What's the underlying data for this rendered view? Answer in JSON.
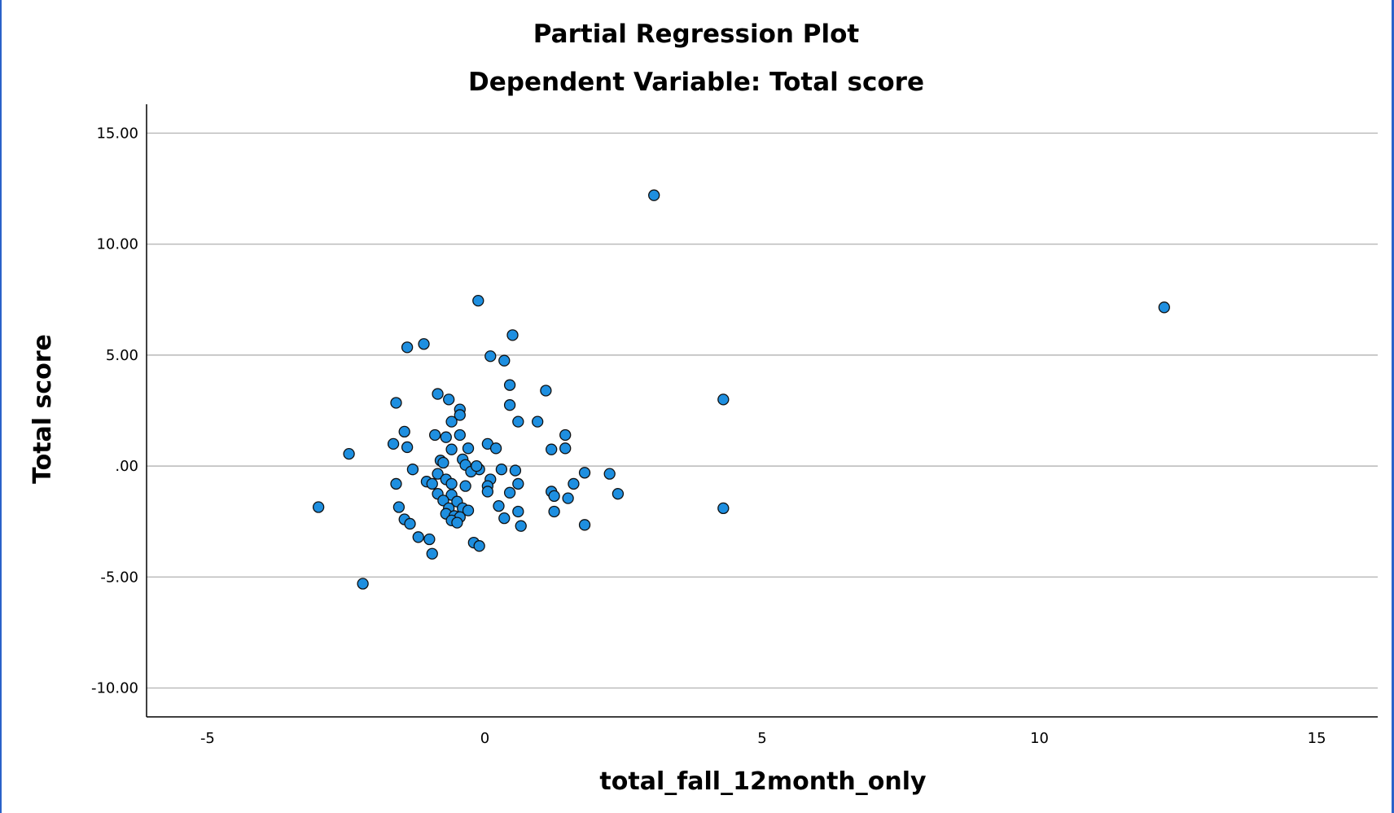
{
  "chart_data": {
    "type": "scatter",
    "title": "Partial Regression Plot",
    "subtitle": "Dependent Variable: Total score",
    "xlabel": "total_fall_12month_only",
    "ylabel": "Total score",
    "xlim": [
      -6.1,
      16.1
    ],
    "ylim": [
      -11.3,
      16.3
    ],
    "x_ticks": [
      -5,
      0,
      5,
      10,
      15
    ],
    "x_tick_labels": [
      "-5",
      "0",
      "5",
      "10",
      "15"
    ],
    "y_ticks": [
      15,
      10,
      5,
      0,
      -5,
      -10
    ],
    "y_tick_labels": [
      "15.00",
      "10.00",
      "5.00",
      ".00",
      "-5.00",
      "-10.00"
    ],
    "grid": "horizontal",
    "marker_color": "#1e8fe0",
    "marker_edge": "#111111",
    "points": [
      [
        3.05,
        12.2
      ],
      [
        12.25,
        7.15
      ],
      [
        -0.12,
        7.45
      ],
      [
        0.5,
        5.9
      ],
      [
        -1.1,
        5.5
      ],
      [
        -1.4,
        5.35
      ],
      [
        0.1,
        4.95
      ],
      [
        0.35,
        4.75
      ],
      [
        4.3,
        3.0
      ],
      [
        0.45,
        3.65
      ],
      [
        1.1,
        3.4
      ],
      [
        -0.85,
        3.25
      ],
      [
        -0.65,
        3.0
      ],
      [
        -1.6,
        2.85
      ],
      [
        0.45,
        2.75
      ],
      [
        -0.45,
        2.55
      ],
      [
        -0.45,
        2.3
      ],
      [
        -0.6,
        2.0
      ],
      [
        0.6,
        2.0
      ],
      [
        0.95,
        2.0
      ],
      [
        -1.45,
        1.55
      ],
      [
        -0.9,
        1.4
      ],
      [
        -0.45,
        1.4
      ],
      [
        -0.7,
        1.3
      ],
      [
        1.45,
        1.4
      ],
      [
        -1.65,
        1.0
      ],
      [
        -1.4,
        0.85
      ],
      [
        0.05,
        1.0
      ],
      [
        0.2,
        0.8
      ],
      [
        -0.3,
        0.8
      ],
      [
        -0.6,
        0.75
      ],
      [
        1.2,
        0.75
      ],
      [
        1.45,
        0.8
      ],
      [
        -2.45,
        0.55
      ],
      [
        -0.8,
        0.25
      ],
      [
        -0.4,
        0.3
      ],
      [
        -0.75,
        0.15
      ],
      [
        -0.35,
        0.05
      ],
      [
        -0.1,
        -0.15
      ],
      [
        0.3,
        -0.15
      ],
      [
        0.55,
        -0.2
      ],
      [
        -1.3,
        -0.15
      ],
      [
        -0.85,
        -0.35
      ],
      [
        -0.25,
        -0.25
      ],
      [
        1.8,
        -0.3
      ],
      [
        2.25,
        -0.35
      ],
      [
        -0.15,
        0.0
      ],
      [
        -0.7,
        -0.6
      ],
      [
        0.1,
        -0.6
      ],
      [
        -1.05,
        -0.7
      ],
      [
        -0.95,
        -0.8
      ],
      [
        -1.6,
        -0.8
      ],
      [
        -0.35,
        -0.9
      ],
      [
        -0.6,
        -0.8
      ],
      [
        0.05,
        -0.9
      ],
      [
        0.6,
        -0.8
      ],
      [
        1.6,
        -0.8
      ],
      [
        -0.85,
        -1.25
      ],
      [
        -0.6,
        -1.3
      ],
      [
        0.05,
        -1.15
      ],
      [
        0.45,
        -1.2
      ],
      [
        1.2,
        -1.15
      ],
      [
        1.25,
        -1.35
      ],
      [
        1.5,
        -1.45
      ],
      [
        2.4,
        -1.25
      ],
      [
        -0.75,
        -1.55
      ],
      [
        -0.5,
        -1.6
      ],
      [
        -0.65,
        -1.9
      ],
      [
        -0.4,
        -1.9
      ],
      [
        -3.0,
        -1.85
      ],
      [
        -1.55,
        -1.85
      ],
      [
        -0.3,
        -2.0
      ],
      [
        0.25,
        -1.8
      ],
      [
        4.3,
        -1.9
      ],
      [
        -0.7,
        -2.15
      ],
      [
        -0.55,
        -2.25
      ],
      [
        -0.45,
        -2.3
      ],
      [
        0.6,
        -2.05
      ],
      [
        1.25,
        -2.05
      ],
      [
        -1.45,
        -2.4
      ],
      [
        -0.6,
        -2.45
      ],
      [
        -0.5,
        -2.55
      ],
      [
        0.35,
        -2.35
      ],
      [
        -1.35,
        -2.6
      ],
      [
        0.65,
        -2.7
      ],
      [
        1.8,
        -2.65
      ],
      [
        -1.2,
        -3.2
      ],
      [
        -1.0,
        -3.3
      ],
      [
        -0.2,
        -3.45
      ],
      [
        -0.1,
        -3.6
      ],
      [
        -0.95,
        -3.95
      ],
      [
        -2.2,
        -5.3
      ]
    ]
  }
}
